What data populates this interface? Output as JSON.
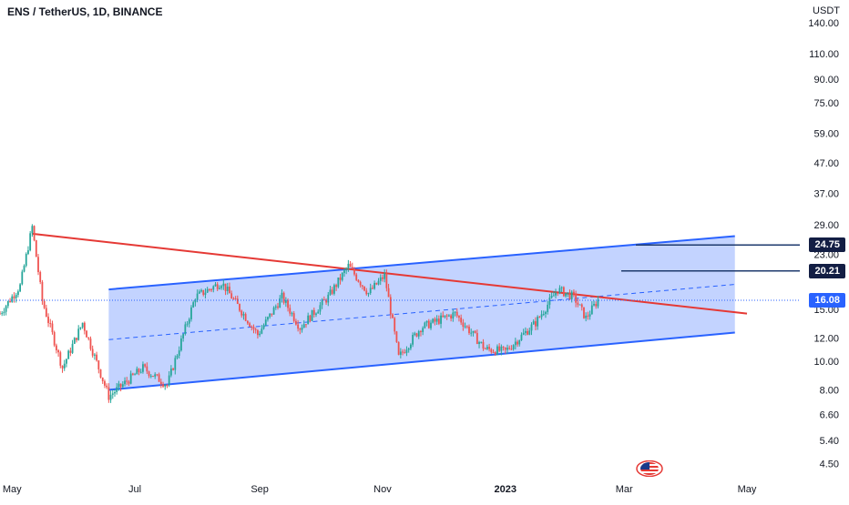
{
  "header": {
    "symbol_line": "ENS / TetherUS, 1D, BINANCE"
  },
  "y_axis": {
    "unit": "USDT",
    "ticks": [
      "140.00",
      "110.00",
      "90.00",
      "75.00",
      "59.00",
      "47.00",
      "37.00",
      "29.00",
      "23.00",
      "15.00",
      "12.00",
      "10.00",
      "8.00",
      "6.60",
      "5.40",
      "4.50"
    ]
  },
  "x_axis": {
    "ticks": [
      "May",
      "Jul",
      "Sep",
      "Nov",
      "2023",
      "Mar",
      "May"
    ]
  },
  "price_labels": {
    "level_1": "24.75",
    "level_2": "20.21",
    "last_price": "16.08"
  },
  "colors": {
    "channel_line": "#2962ff",
    "channel_fill": "#2962ff",
    "trendline": "#e53935",
    "candle_up": "#26a69a",
    "candle_down": "#ef5350",
    "level_line": "#1e3a6e",
    "last_price_badge": "#2962ff",
    "level_badge": "#131e44"
  },
  "icons": {
    "bottom_logo": "us-flag-icon"
  },
  "chart_data": {
    "type": "candlestick",
    "symbol": "ENS / TetherUS",
    "interval": "1D",
    "exchange": "BINANCE",
    "y_scale": "log",
    "ylim": [
      4.3,
      160
    ],
    "x_range": [
      "2022-04-25",
      "2023-05-20"
    ],
    "key_points": [
      {
        "date": "2022-04-25",
        "price": 14.5
      },
      {
        "date": "2022-05-05",
        "price": 18.0
      },
      {
        "date": "2022-05-11",
        "price": 28.5
      },
      {
        "date": "2022-05-16",
        "price": 16.0
      },
      {
        "date": "2022-05-26",
        "price": 9.5
      },
      {
        "date": "2022-06-05",
        "price": 13.5
      },
      {
        "date": "2022-06-18",
        "price": 7.6
      },
      {
        "date": "2022-07-05",
        "price": 9.5
      },
      {
        "date": "2022-07-17",
        "price": 8.3
      },
      {
        "date": "2022-07-31",
        "price": 16.5
      },
      {
        "date": "2022-08-13",
        "price": 18.5
      },
      {
        "date": "2022-08-31",
        "price": 12.3
      },
      {
        "date": "2022-09-12",
        "price": 16.5
      },
      {
        "date": "2022-09-21",
        "price": 13.0
      },
      {
        "date": "2022-10-05",
        "price": 16.5
      },
      {
        "date": "2022-10-15",
        "price": 21.0
      },
      {
        "date": "2022-10-25",
        "price": 17.0
      },
      {
        "date": "2022-11-02",
        "price": 19.5
      },
      {
        "date": "2022-11-09",
        "price": 10.3
      },
      {
        "date": "2022-11-20",
        "price": 13.0
      },
      {
        "date": "2022-12-07",
        "price": 14.5
      },
      {
        "date": "2022-12-22",
        "price": 11.0
      },
      {
        "date": "2023-01-01",
        "price": 10.8
      },
      {
        "date": "2023-01-16",
        "price": 13.5
      },
      {
        "date": "2023-01-27",
        "price": 17.5
      },
      {
        "date": "2023-02-04",
        "price": 16.5
      },
      {
        "date": "2023-02-10",
        "price": 14.0
      },
      {
        "date": "2023-02-16",
        "price": 16.1
      }
    ],
    "drawings": {
      "channel": {
        "lower": [
          {
            "date": "2022-06-18",
            "price": 8.0
          },
          {
            "date": "2023-04-25",
            "price": 12.5
          }
        ],
        "upper": [
          {
            "date": "2022-06-18",
            "price": 17.5
          },
          {
            "date": "2023-04-25",
            "price": 26.5
          }
        ],
        "midline": "dashed"
      },
      "trendline": [
        {
          "date": "2022-05-11",
          "price": 27.0
        },
        {
          "date": "2023-05-01",
          "price": 14.5
        }
      ],
      "horizontal_levels": [
        24.75,
        20.21
      ],
      "last_price": 16.08
    }
  }
}
